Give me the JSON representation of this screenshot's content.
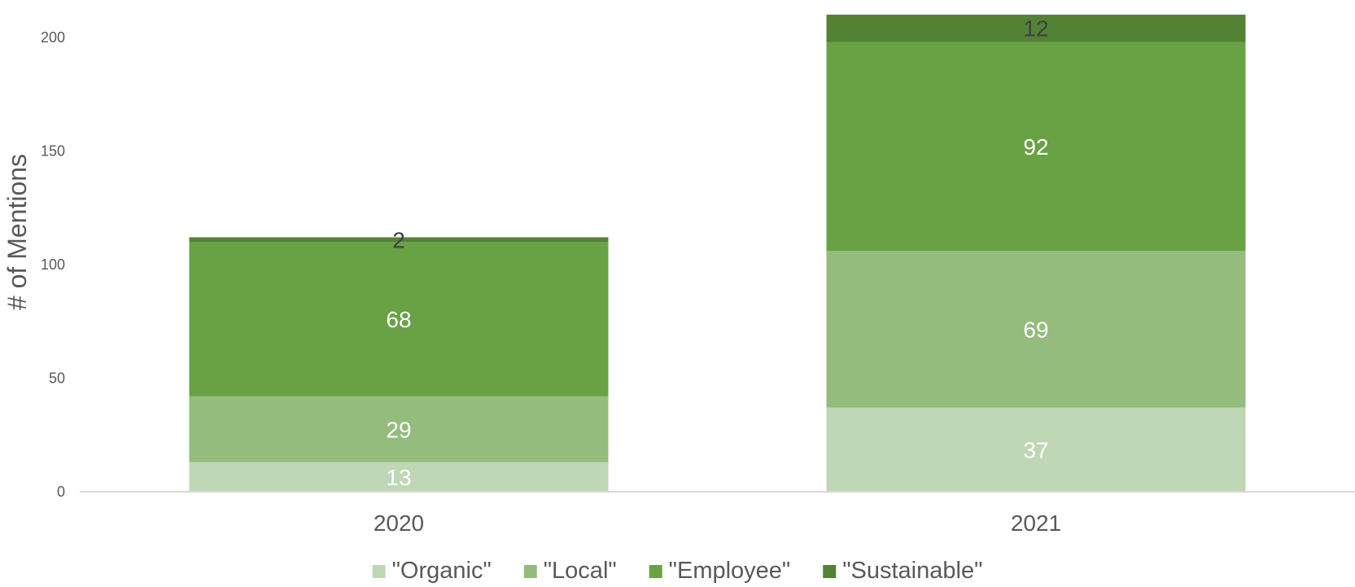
{
  "chart_data": {
    "type": "bar",
    "stacked": true,
    "categories": [
      "2020",
      "2021"
    ],
    "series": [
      {
        "name": "\"Organic\"",
        "values": [
          13,
          37
        ],
        "color": "#bfd7b4"
      },
      {
        "name": "\"Local\"",
        "values": [
          29,
          69
        ],
        "color": "#93bc7d"
      },
      {
        "name": "\"Employee\"",
        "values": [
          68,
          92
        ],
        "color": "#68a244"
      },
      {
        "name": "\"Sustainable\"",
        "values": [
          2,
          12
        ],
        "color": "#548235"
      }
    ],
    "title": "",
    "xlabel": "",
    "ylabel": "# of Mentions",
    "ylim": [
      0,
      210
    ],
    "yticks": [
      0,
      50,
      100,
      150,
      200
    ],
    "grid": false,
    "legend": "bottom",
    "data_label_colors": [
      "#ffffff",
      "#ffffff",
      "#ffffff",
      "#404040"
    ]
  }
}
